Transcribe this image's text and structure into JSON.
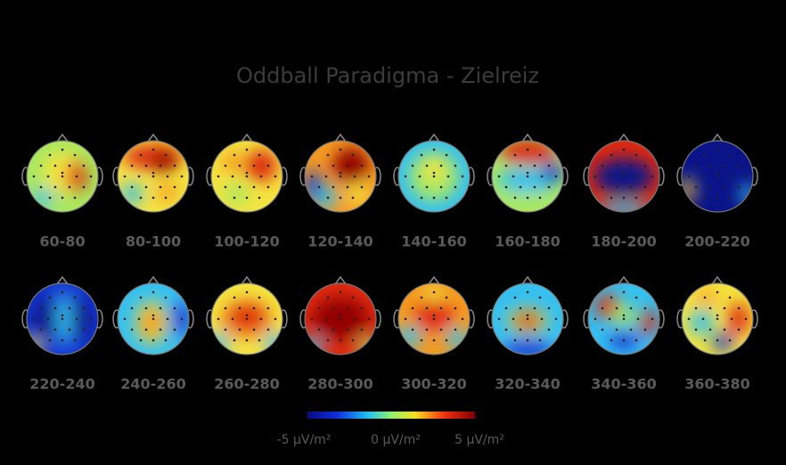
{
  "title": "Oddball Paradigma - Zielreiz",
  "maps": [
    "60-80",
    "80-100",
    "100-120",
    "120-140",
    "140-160",
    "160-180",
    "180-200",
    "200-220",
    "220-240",
    "240-260",
    "260-280",
    "280-300",
    "300-320",
    "320-340",
    "340-360",
    "360-380"
  ],
  "colorbar": {
    "labels": [
      "-5 µV/m²",
      "0 µV/m²",
      "5 µV/m²"
    ]
  }
}
